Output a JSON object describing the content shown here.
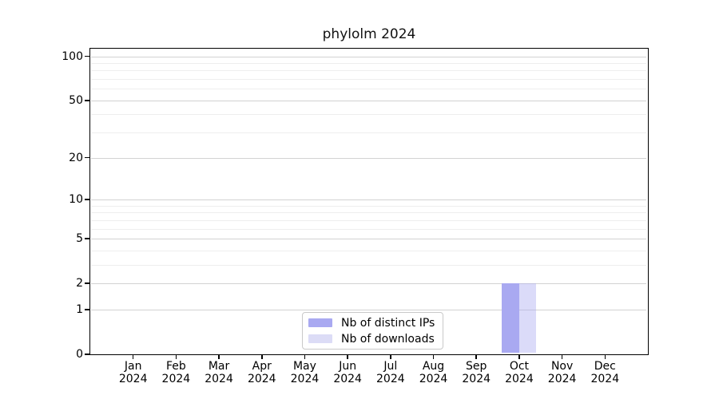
{
  "title": "phylolm 2024",
  "chart_data": {
    "type": "bar",
    "title": "phylolm 2024",
    "categories": [
      "Jan",
      "Feb",
      "Mar",
      "Apr",
      "May",
      "Jun",
      "Jul",
      "Aug",
      "Sep",
      "Oct",
      "Nov",
      "Dec"
    ],
    "year": "2024",
    "series": [
      {
        "name": "Nb of distinct IPs",
        "color": "#a9a9f1",
        "values": [
          0,
          0,
          0,
          0,
          0,
          0,
          0,
          0,
          0,
          2,
          0,
          0
        ]
      },
      {
        "name": "Nb of downloads",
        "color": "#dcdcf6",
        "rgba": "rgba(169,169,241,0.42)",
        "values": [
          0,
          0,
          0,
          0,
          0,
          0,
          0,
          0,
          0,
          2,
          0,
          0
        ]
      }
    ],
    "y_axis": {
      "scale": "log1p",
      "major_ticks": [
        0,
        1,
        2,
        5,
        10,
        20,
        50,
        100
      ],
      "minor_gridlines": [
        3,
        4,
        6,
        7,
        8,
        9,
        30,
        40,
        60,
        70,
        80,
        90
      ],
      "range": [
        0,
        112
      ]
    },
    "legend": {
      "position": "bottom-center"
    },
    "grid": true,
    "colors": {
      "grid_major": "#d2d2d2",
      "grid_minor": "#eeeeee",
      "spine": "#000000",
      "legend_border": "#c9c9c9",
      "background": "#ffffff"
    }
  }
}
